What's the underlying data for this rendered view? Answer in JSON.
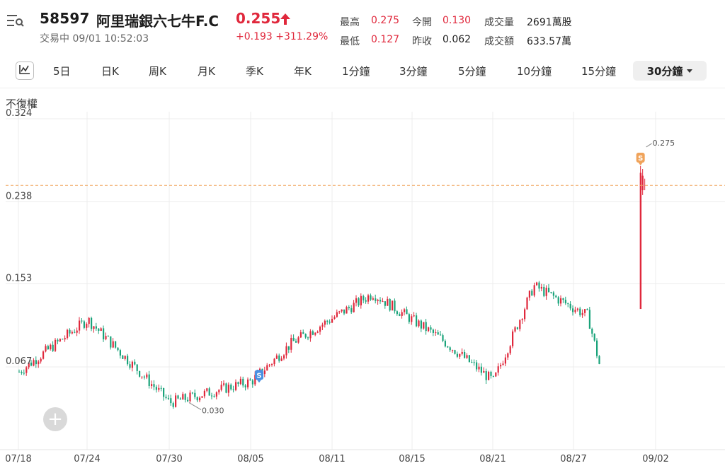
{
  "header": {
    "code": "58597",
    "name": "阿里瑞銀六七牛F.C",
    "price": "0.255",
    "status": "交易中 09/01 10:52:03",
    "change": "+0.193 +311.29%",
    "stats": [
      {
        "label": "最高",
        "value": "0.275",
        "tone": "red"
      },
      {
        "label": "今開",
        "value": "0.130",
        "tone": "red"
      },
      {
        "label": "成交量",
        "value": "2691萬股",
        "tone": "dark"
      },
      {
        "label": "最低",
        "value": "0.127",
        "tone": "red"
      },
      {
        "label": "昨收",
        "value": "0.062",
        "tone": "dark"
      },
      {
        "label": "成交額",
        "value": "633.57萬",
        "tone": "dark"
      }
    ]
  },
  "toolbar": {
    "tabs": [
      "5日",
      "日K",
      "周K",
      "月K",
      "季K",
      "年K",
      "1分鐘",
      "3分鐘",
      "5分鐘",
      "10分鐘",
      "15分鐘"
    ],
    "active_tab": "30分鐘"
  },
  "chart_label": "不復權",
  "colors": {
    "up": "#e0283c",
    "down": "#1aa37a",
    "accent": "#e0283c",
    "marker": "#f0a35a",
    "marker_blue": "#4a90e2",
    "grid": "#ececec"
  },
  "icons": {
    "menu": "menu-search-icon",
    "chart_type": "line-chart-icon",
    "price_up": "arrow-up-icon",
    "add": "plus-icon"
  },
  "chart_data": {
    "type": "candlestick",
    "y_ticks": [
      "0.324",
      "0.238",
      "0.153",
      "0.067"
    ],
    "y_tick_values": [
      0.324,
      0.238,
      0.153,
      0.067
    ],
    "ylim": [
      0.007,
      0.348
    ],
    "x_ticks": [
      "07/18",
      "07/24",
      "07/30",
      "08/05",
      "08/11",
      "08/15",
      "08/21",
      "08/27",
      "09/02"
    ],
    "annotations": [
      {
        "text": "0.030",
        "at": "07/30"
      },
      {
        "text": "0.275",
        "at": "09/01"
      }
    ],
    "markers": [
      {
        "label": "S",
        "at": "08/05"
      },
      {
        "label": "S",
        "at": "09/01"
      }
    ],
    "reference_line": 0.255,
    "key_points": [
      {
        "x": "07/18",
        "y": 0.062
      },
      {
        "x": "07/24",
        "y": 0.116
      },
      {
        "x": "07/30",
        "y": 0.03
      },
      {
        "x": "08/05",
        "y": 0.052
      },
      {
        "x": "08/08",
        "y": 0.092
      },
      {
        "x": "08/13",
        "y": 0.143
      },
      {
        "x": "08/17",
        "y": 0.097
      },
      {
        "x": "08/21",
        "y": 0.052
      },
      {
        "x": "08/24",
        "y": 0.151
      },
      {
        "x": "08/28",
        "y": 0.12
      },
      {
        "x": "08/29",
        "y": 0.06
      },
      {
        "x": "09/01",
        "y": 0.275
      }
    ]
  }
}
